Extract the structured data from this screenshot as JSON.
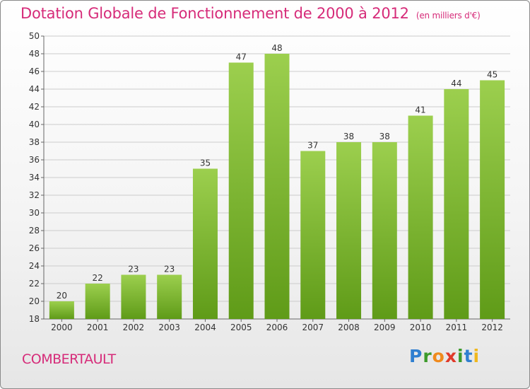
{
  "chart_data": {
    "type": "bar",
    "title": "Dotation Globale de Fonctionnement de 2000 à 2012",
    "subtitle": "(en milliers d'€)",
    "categories": [
      "2000",
      "2001",
      "2002",
      "2003",
      "2004",
      "2005",
      "2006",
      "2007",
      "2008",
      "2009",
      "2010",
      "2011",
      "2012"
    ],
    "values": [
      20,
      22,
      23,
      23,
      35,
      47,
      48,
      37,
      38,
      38,
      41,
      44,
      45
    ],
    "ylim": [
      18,
      50
    ],
    "yticks": [
      18,
      20,
      22,
      24,
      26,
      28,
      30,
      32,
      34,
      36,
      38,
      40,
      42,
      44,
      46,
      48,
      50
    ],
    "grid": true,
    "xlabel": "",
    "ylabel": "",
    "colors": {
      "bar_top": "#9ccf4e",
      "bar_bottom": "#5f9b18",
      "title": "#d62b79",
      "grid": "#cccccc"
    }
  },
  "commune": "COMBERTAULT",
  "logo": {
    "letters": [
      "P",
      "r",
      "o",
      "x",
      "i",
      "t",
      "i"
    ],
    "alt": "Proxiti"
  }
}
